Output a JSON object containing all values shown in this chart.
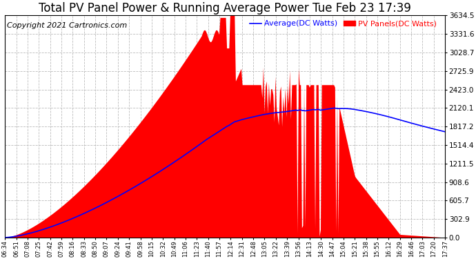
{
  "title": "Total PV Panel Power & Running Average Power Tue Feb 23 17:39",
  "copyright": "Copyright 2021 Cartronics.com",
  "ylabel_right_values": [
    0.0,
    302.9,
    605.7,
    908.6,
    1211.5,
    1514.4,
    1817.2,
    2120.1,
    2423.0,
    2725.9,
    3028.7,
    3331.6,
    3634.5
  ],
  "ymax": 3634.5,
  "ymin": 0.0,
  "legend_average": "Average(DC Watts)",
  "legend_pv": "PV Panels(DC Watts)",
  "pv_color": "#ff0000",
  "avg_color": "#0000ff",
  "background_color": "#ffffff",
  "grid_color": "#bbbbbb",
  "title_fontsize": 12,
  "copyright_fontsize": 8,
  "tick_labels": [
    "06:34",
    "06:51",
    "07:08",
    "07:25",
    "07:42",
    "07:59",
    "08:16",
    "08:33",
    "08:50",
    "09:07",
    "09:24",
    "09:41",
    "09:58",
    "10:15",
    "10:32",
    "10:49",
    "11:06",
    "11:23",
    "11:40",
    "11:57",
    "12:14",
    "12:31",
    "12:48",
    "13:05",
    "13:22",
    "13:39",
    "13:56",
    "14:13",
    "14:30",
    "14:47",
    "15:04",
    "15:21",
    "15:38",
    "15:55",
    "16:12",
    "16:29",
    "16:46",
    "17:03",
    "17:20",
    "17:37"
  ]
}
